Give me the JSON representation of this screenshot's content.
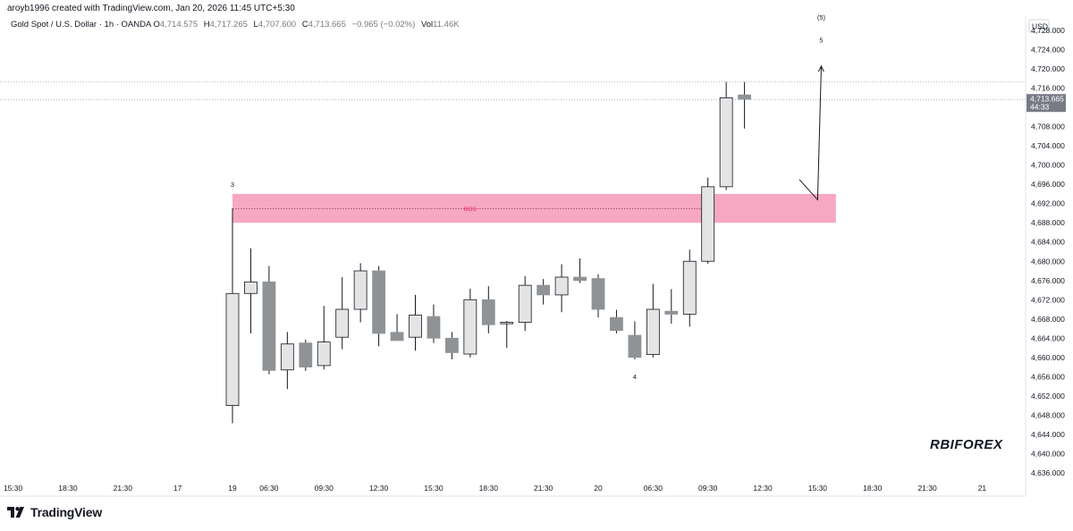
{
  "credit": "aroyb1996 created with TradingView.com, Jan 20, 2026 11:45 UTC+5:30",
  "legend": {
    "symbol": "Gold Spot / U.S. Dollar · 1h · OANDA",
    "open_label": "O",
    "open": "4,714.575",
    "high_label": "H",
    "high": "4,717.265",
    "low_label": "L",
    "low": "4,707.600",
    "close_label": "C",
    "close": "4,713.665",
    "change": "−0.965 (−0.02%)",
    "volume_label": "Vol",
    "volume": "11.46K"
  },
  "currency": "USD",
  "last_price": {
    "value": "4,713.665",
    "countdown": "44:33"
  },
  "watermark": "RBIFOREX",
  "brand": "TradingView",
  "colors": {
    "bull_body": "#e4e4e4",
    "bear_body": "#8f9396",
    "wick": "#131722",
    "zone": "#f5a3bf",
    "bos_text": "#e91e63",
    "price_badge": "#787b86"
  },
  "chart_data": {
    "type": "candlestick",
    "ylim": [
      4633,
      4731
    ],
    "y_ticks": [
      4636,
      4640,
      4644,
      4648,
      4652,
      4656,
      4660,
      4664,
      4668,
      4672,
      4676,
      4680,
      4684,
      4688,
      4692,
      4696,
      4700,
      4704,
      4708,
      4712,
      4716,
      4720,
      4724,
      4728
    ],
    "y_tick_labels": [
      "4,636.000",
      "4,640.000",
      "4,644.000",
      "4,648.000",
      "4,652.000",
      "4,656.000",
      "4,660.000",
      "4,664.000",
      "4,668.000",
      "4,672.000",
      "4,676.000",
      "4,680.000",
      "4,684.000",
      "4,688.000",
      "4,692.000",
      "4,696.000",
      "4,700.000",
      "4,704.000",
      "4,708.000",
      "4,712.000",
      "4,716.000",
      "4,720.000",
      "4,724.000",
      "4,728.000"
    ],
    "x_ticks": [
      {
        "label": "15:30",
        "i": -12
      },
      {
        "label": "18:30",
        "i": -9
      },
      {
        "label": "21:30",
        "i": -6
      },
      {
        "label": "17",
        "i": -3
      },
      {
        "label": "19",
        "i": 0
      },
      {
        "label": "06:30",
        "i": 2
      },
      {
        "label": "09:30",
        "i": 5
      },
      {
        "label": "12:30",
        "i": 8
      },
      {
        "label": "15:30",
        "i": 11
      },
      {
        "label": "18:30",
        "i": 14
      },
      {
        "label": "21:30",
        "i": 17
      },
      {
        "label": "20",
        "i": 20
      },
      {
        "label": "06:30",
        "i": 23
      },
      {
        "label": "09:30",
        "i": 26
      },
      {
        "label": "12:30",
        "i": 29
      },
      {
        "label": "15:30",
        "i": 32
      },
      {
        "label": "18:30",
        "i": 35
      },
      {
        "label": "21:30",
        "i": 38
      },
      {
        "label": "21",
        "i": 41
      }
    ],
    "candles": [
      {
        "o": 4650.0,
        "h": 4691.0,
        "l": 4646.3,
        "c": 4673.3
      },
      {
        "o": 4673.3,
        "h": 4682.7,
        "l": 4665.0,
        "c": 4675.7
      },
      {
        "o": 4675.7,
        "h": 4679.0,
        "l": 4656.5,
        "c": 4657.3
      },
      {
        "o": 4657.4,
        "h": 4665.3,
        "l": 4653.4,
        "c": 4662.8
      },
      {
        "o": 4663.0,
        "h": 4663.7,
        "l": 4657.2,
        "c": 4658.0
      },
      {
        "o": 4658.3,
        "h": 4670.7,
        "l": 4657.5,
        "c": 4663.2
      },
      {
        "o": 4664.2,
        "h": 4676.7,
        "l": 4661.7,
        "c": 4670.0
      },
      {
        "o": 4670.0,
        "h": 4679.6,
        "l": 4667.3,
        "c": 4678.0
      },
      {
        "o": 4678.0,
        "h": 4679.0,
        "l": 4662.3,
        "c": 4665.0
      },
      {
        "o": 4665.2,
        "h": 4669.0,
        "l": 4663.8,
        "c": 4663.5
      },
      {
        "o": 4664.2,
        "h": 4673.0,
        "l": 4661.4,
        "c": 4668.8
      },
      {
        "o": 4668.5,
        "h": 4671.0,
        "l": 4663.0,
        "c": 4664.0
      },
      {
        "o": 4664.0,
        "h": 4665.3,
        "l": 4659.6,
        "c": 4661.0
      },
      {
        "o": 4660.7,
        "h": 4674.3,
        "l": 4660.0,
        "c": 4672.0
      },
      {
        "o": 4672.0,
        "h": 4674.8,
        "l": 4665.0,
        "c": 4666.8
      },
      {
        "o": 4667.0,
        "h": 4667.6,
        "l": 4662.0,
        "c": 4667.3
      },
      {
        "o": 4667.3,
        "h": 4676.9,
        "l": 4665.5,
        "c": 4675.0
      },
      {
        "o": 4675.0,
        "h": 4676.3,
        "l": 4671.0,
        "c": 4673.0
      },
      {
        "o": 4673.0,
        "h": 4679.4,
        "l": 4669.4,
        "c": 4676.7
      },
      {
        "o": 4676.7,
        "h": 4680.6,
        "l": 4675.5,
        "c": 4676.0
      },
      {
        "o": 4676.4,
        "h": 4677.3,
        "l": 4668.3,
        "c": 4670.0
      },
      {
        "o": 4668.3,
        "h": 4669.9,
        "l": 4665.0,
        "c": 4665.6
      },
      {
        "o": 4664.6,
        "h": 4667.5,
        "l": 4659.6,
        "c": 4660.0
      },
      {
        "o": 4660.6,
        "h": 4675.3,
        "l": 4660.0,
        "c": 4670.0
      },
      {
        "o": 4669.6,
        "h": 4674.2,
        "l": 4667.0,
        "c": 4669.0
      },
      {
        "o": 4669.0,
        "h": 4682.4,
        "l": 4666.4,
        "c": 4680.0
      },
      {
        "o": 4680.0,
        "h": 4697.4,
        "l": 4679.5,
        "c": 4695.5
      },
      {
        "o": 4695.5,
        "h": 4717.3,
        "l": 4694.8,
        "c": 4714.0
      },
      {
        "o": 4714.6,
        "h": 4717.3,
        "l": 4707.6,
        "c": 4713.7
      }
    ],
    "zone": {
      "y_bottom": 4688.0,
      "y_top": 4694.0,
      "start_i": 0,
      "end_i": 33,
      "label": "BOS",
      "label_y": 4690.9
    },
    "annotations": [
      {
        "text": "3",
        "i": 0,
        "y": 4695.5
      },
      {
        "text": "4",
        "i": 22,
        "y": 4655.5
      },
      {
        "text": "5",
        "i": 32.2,
        "y": 4725.5
      },
      {
        "text": "(5)",
        "i": 32.2,
        "y": 4730.3
      }
    ],
    "projection": [
      {
        "i": 31.0,
        "y": 4697.0
      },
      {
        "i": 32.0,
        "y": 4692.8
      },
      {
        "i": 32.2,
        "y": 4720.6
      }
    ],
    "dotted_levels": [
      4717.3,
      4713.665
    ]
  }
}
